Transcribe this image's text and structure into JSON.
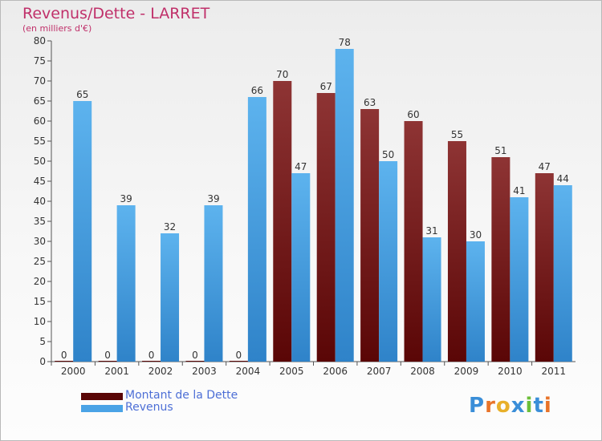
{
  "title": "Revenus/Dette - LARRET",
  "subtitle": "(en milliers d'€)",
  "colors": {
    "debt": "#7a1a1a",
    "revenue": "#4aa3e6",
    "title": "#c0306a",
    "legend_text": "#4d6fd6"
  },
  "chart_data": {
    "type": "bar",
    "title": "Revenus/Dette - LARRET",
    "ylabel": "(en milliers d'€)",
    "ylim": [
      0,
      80
    ],
    "yticks": [
      0,
      5,
      10,
      15,
      20,
      25,
      30,
      35,
      40,
      45,
      50,
      55,
      60,
      65,
      70,
      75,
      80
    ],
    "grid": false,
    "legend_position": "bottom-left",
    "categories": [
      "2000",
      "2001",
      "2002",
      "2003",
      "2004",
      "2005",
      "2006",
      "2007",
      "2008",
      "2009",
      "2010",
      "2011"
    ],
    "series": [
      {
        "name": "Montant de la Dette",
        "values": [
          0,
          0,
          0,
          0,
          0,
          70,
          67,
          63,
          60,
          55,
          51,
          47
        ]
      },
      {
        "name": "Revenus",
        "values": [
          65,
          39,
          32,
          39,
          66,
          47,
          78,
          50,
          31,
          30,
          41,
          44
        ]
      }
    ]
  },
  "legend": [
    "Montant de la Dette",
    "Revenus"
  ],
  "logo": {
    "text": "Proxiti",
    "letters": [
      "P",
      "r",
      "o",
      "x",
      "i",
      "t",
      "i"
    ],
    "colors": [
      "#3a8ed8",
      "#e8742a",
      "#e8b02a",
      "#3a8ed8",
      "#6cbf3a",
      "#3a8ed8",
      "#e8742a"
    ]
  }
}
